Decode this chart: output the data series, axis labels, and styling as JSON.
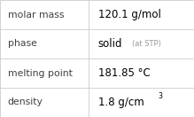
{
  "rows": [
    {
      "label": "molar mass",
      "type": "simple",
      "value": "120.1 g/mol"
    },
    {
      "label": "phase",
      "type": "phase",
      "value": "solid",
      "suffix": " (at STP)"
    },
    {
      "label": "melting point",
      "type": "simple",
      "value": "181.85 °C"
    },
    {
      "label": "density",
      "type": "super",
      "value_main": "1.8 g/cm",
      "value_super": "3"
    }
  ],
  "col_split": 0.455,
  "bg_color": "#ffffff",
  "border_color": "#cccccc",
  "label_color": "#404040",
  "value_color": "#000000",
  "suffix_color": "#999999",
  "label_fontsize": 7.8,
  "value_fontsize": 8.5,
  "suffix_fontsize": 6.0,
  "super_fontsize": 5.8,
  "font_family": "DejaVu Sans"
}
